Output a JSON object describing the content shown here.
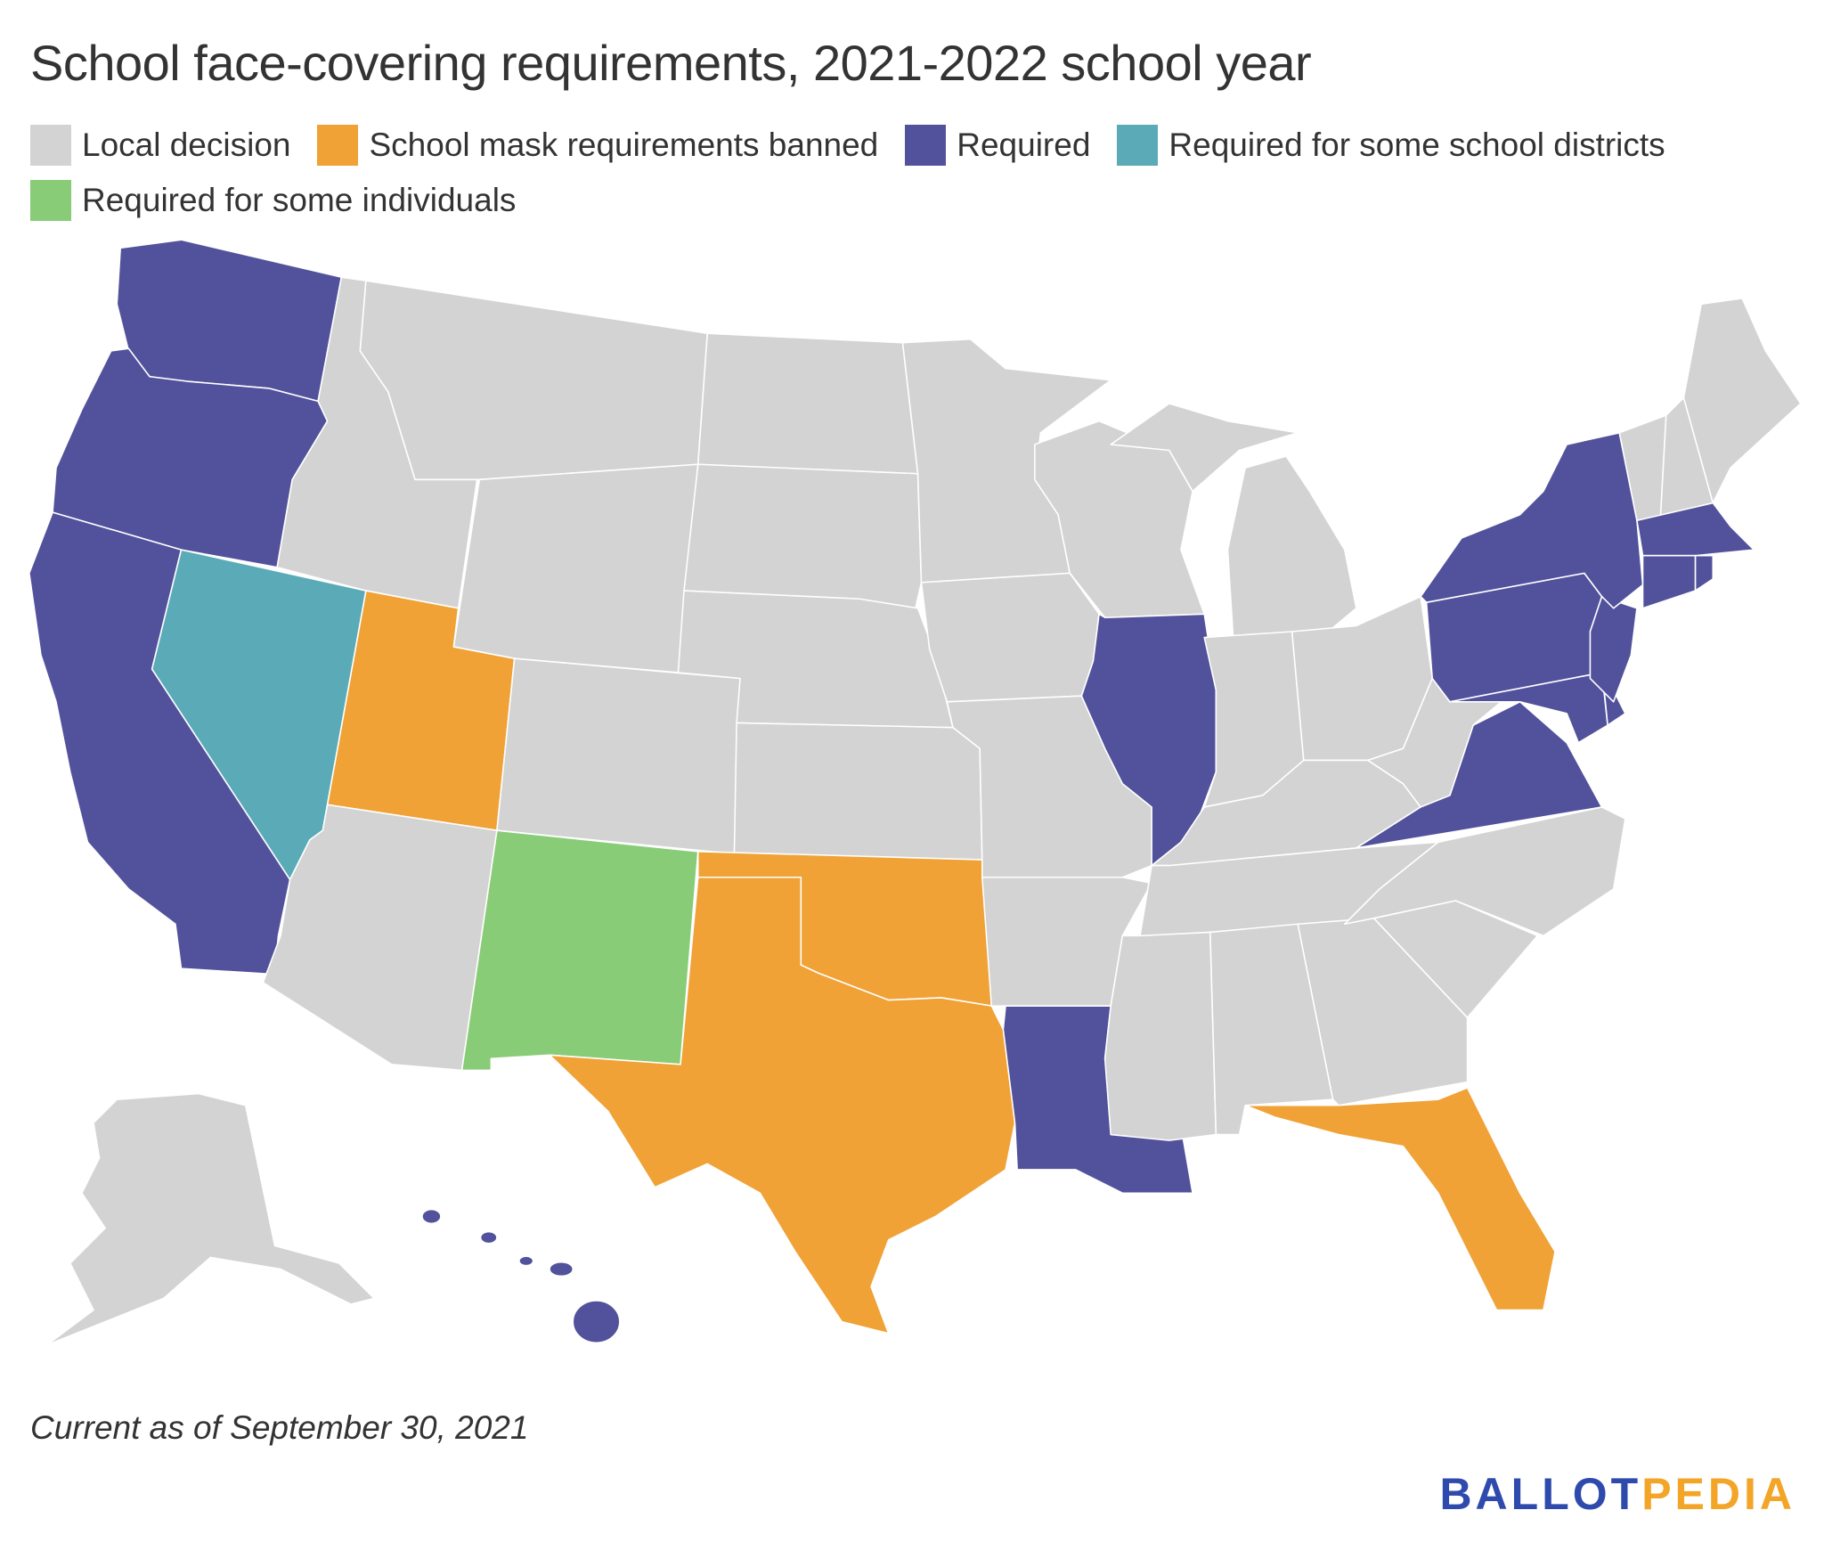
{
  "title": "School face-covering requirements, 2021-2022 school year",
  "legend": [
    {
      "label": "Local decision",
      "color": "#d3d3d3",
      "key": "local"
    },
    {
      "label": "School mask requirements banned",
      "color": "#f0a236",
      "key": "banned"
    },
    {
      "label": "Required",
      "color": "#52529c",
      "key": "required"
    },
    {
      "label": "Required for some school districts",
      "color": "#5aabb7",
      "key": "districts"
    },
    {
      "label": "Required for some individuals",
      "color": "#89cc77",
      "key": "individuals"
    }
  ],
  "map_data": {
    "WA": "required",
    "OR": "required",
    "CA": "required",
    "NV": "districts",
    "ID": "local",
    "MT": "local",
    "WY": "local",
    "UT": "banned",
    "CO": "local",
    "AZ": "local",
    "NM": "individuals",
    "ND": "local",
    "SD": "local",
    "NE": "local",
    "KS": "local",
    "OK": "banned",
    "TX": "banned",
    "MN": "local",
    "IA": "local",
    "MO": "local",
    "AR": "local",
    "LA": "required",
    "WI": "local",
    "IL": "required",
    "MI": "local",
    "IN": "local",
    "OH": "local",
    "KY": "local",
    "TN": "local",
    "MS": "local",
    "AL": "local",
    "GA": "local",
    "FL": "banned",
    "SC": "local",
    "NC": "local",
    "VA": "required",
    "WV": "local",
    "PA": "required",
    "MD": "required",
    "DE": "required",
    "NJ": "required",
    "NY": "required",
    "VT": "local",
    "NH": "local",
    "ME": "local",
    "MA": "required",
    "CT": "required",
    "RI": "required",
    "AK": "local",
    "HI": "required"
  },
  "footnote": "Current as of September 30, 2021",
  "logo": {
    "part1": "BALLOT",
    "part2": "PEDIA"
  }
}
